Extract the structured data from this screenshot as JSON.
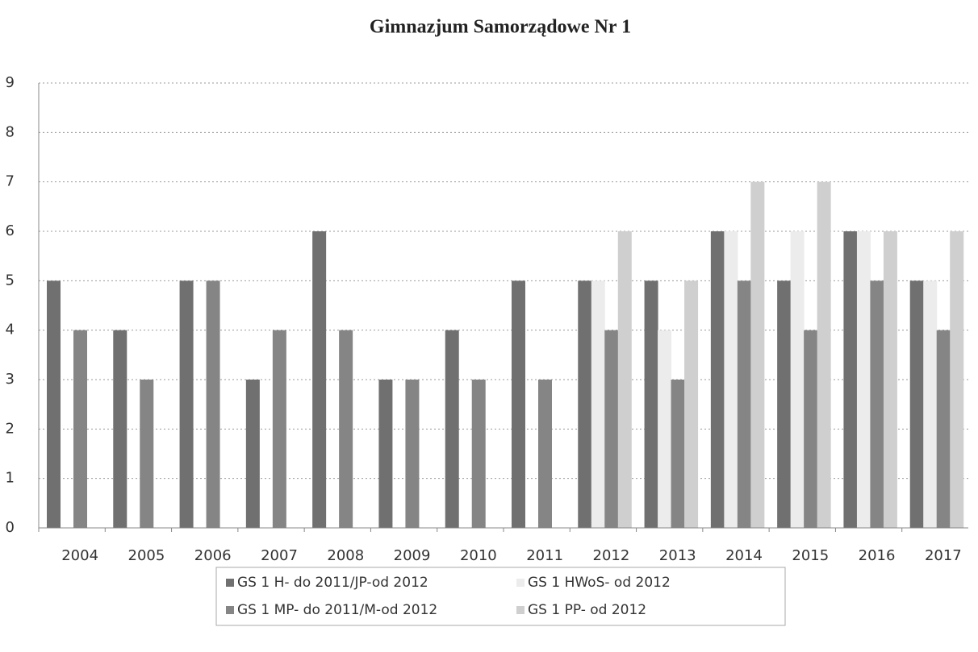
{
  "chart_data": {
    "type": "bar",
    "title": "Gimnazjum Samorządowe Nr 1",
    "categories": [
      "2004",
      "2005",
      "2006",
      "2007",
      "2008",
      "2009",
      "2010",
      "2011",
      "2012",
      "2013",
      "2014",
      "2015",
      "2016",
      "2017"
    ],
    "series": [
      {
        "name": "GS 1 H- do 2011/JP-od 2012",
        "color": "#707070",
        "values": [
          5,
          4,
          5,
          3,
          6,
          3,
          4,
          5,
          5,
          5,
          6,
          5,
          6,
          5
        ]
      },
      {
        "name": "GS 1 HWoS- od 2012",
        "color": "#ececec",
        "values": [
          null,
          null,
          null,
          null,
          null,
          null,
          null,
          null,
          5,
          4,
          6,
          6,
          6,
          5
        ]
      },
      {
        "name": "GS 1 MP- do 2011/M-od 2012",
        "color": "#858585",
        "values": [
          4,
          3,
          5,
          4,
          4,
          3,
          3,
          3,
          4,
          3,
          5,
          4,
          5,
          4
        ]
      },
      {
        "name": "GS 1 PP- od 2012",
        "color": "#cfcfcf",
        "values": [
          null,
          null,
          null,
          null,
          null,
          null,
          null,
          null,
          6,
          5,
          7,
          7,
          6,
          6
        ]
      }
    ],
    "ylim": [
      0,
      9
    ],
    "yticks": [
      0,
      1,
      2,
      3,
      4,
      5,
      6,
      7,
      8,
      9
    ],
    "grid": true,
    "legend": "bottom"
  }
}
